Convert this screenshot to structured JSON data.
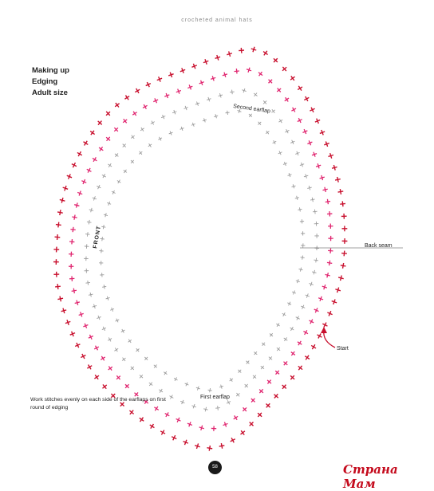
{
  "header": {
    "book_title": "crocheted animal hats"
  },
  "title_block": {
    "line1": "Making up",
    "line2": "Edging",
    "line3": "Adult size"
  },
  "diagram": {
    "labels": {
      "front": "FRONT",
      "back_seam": "Back seam",
      "second_earflap": "Second earflap",
      "first_earflap": "First earflap",
      "start": "Start"
    },
    "colors": {
      "round1": "#9a9a9a",
      "round2": "#9a9a9a",
      "round3": "#e0256f",
      "round4": "#c8102e"
    }
  },
  "note": {
    "text": "Work stitches evenly on each side of the earflaps on first round of edging"
  },
  "footer": {
    "page_number": "58",
    "watermark": "Страна Мам"
  }
}
